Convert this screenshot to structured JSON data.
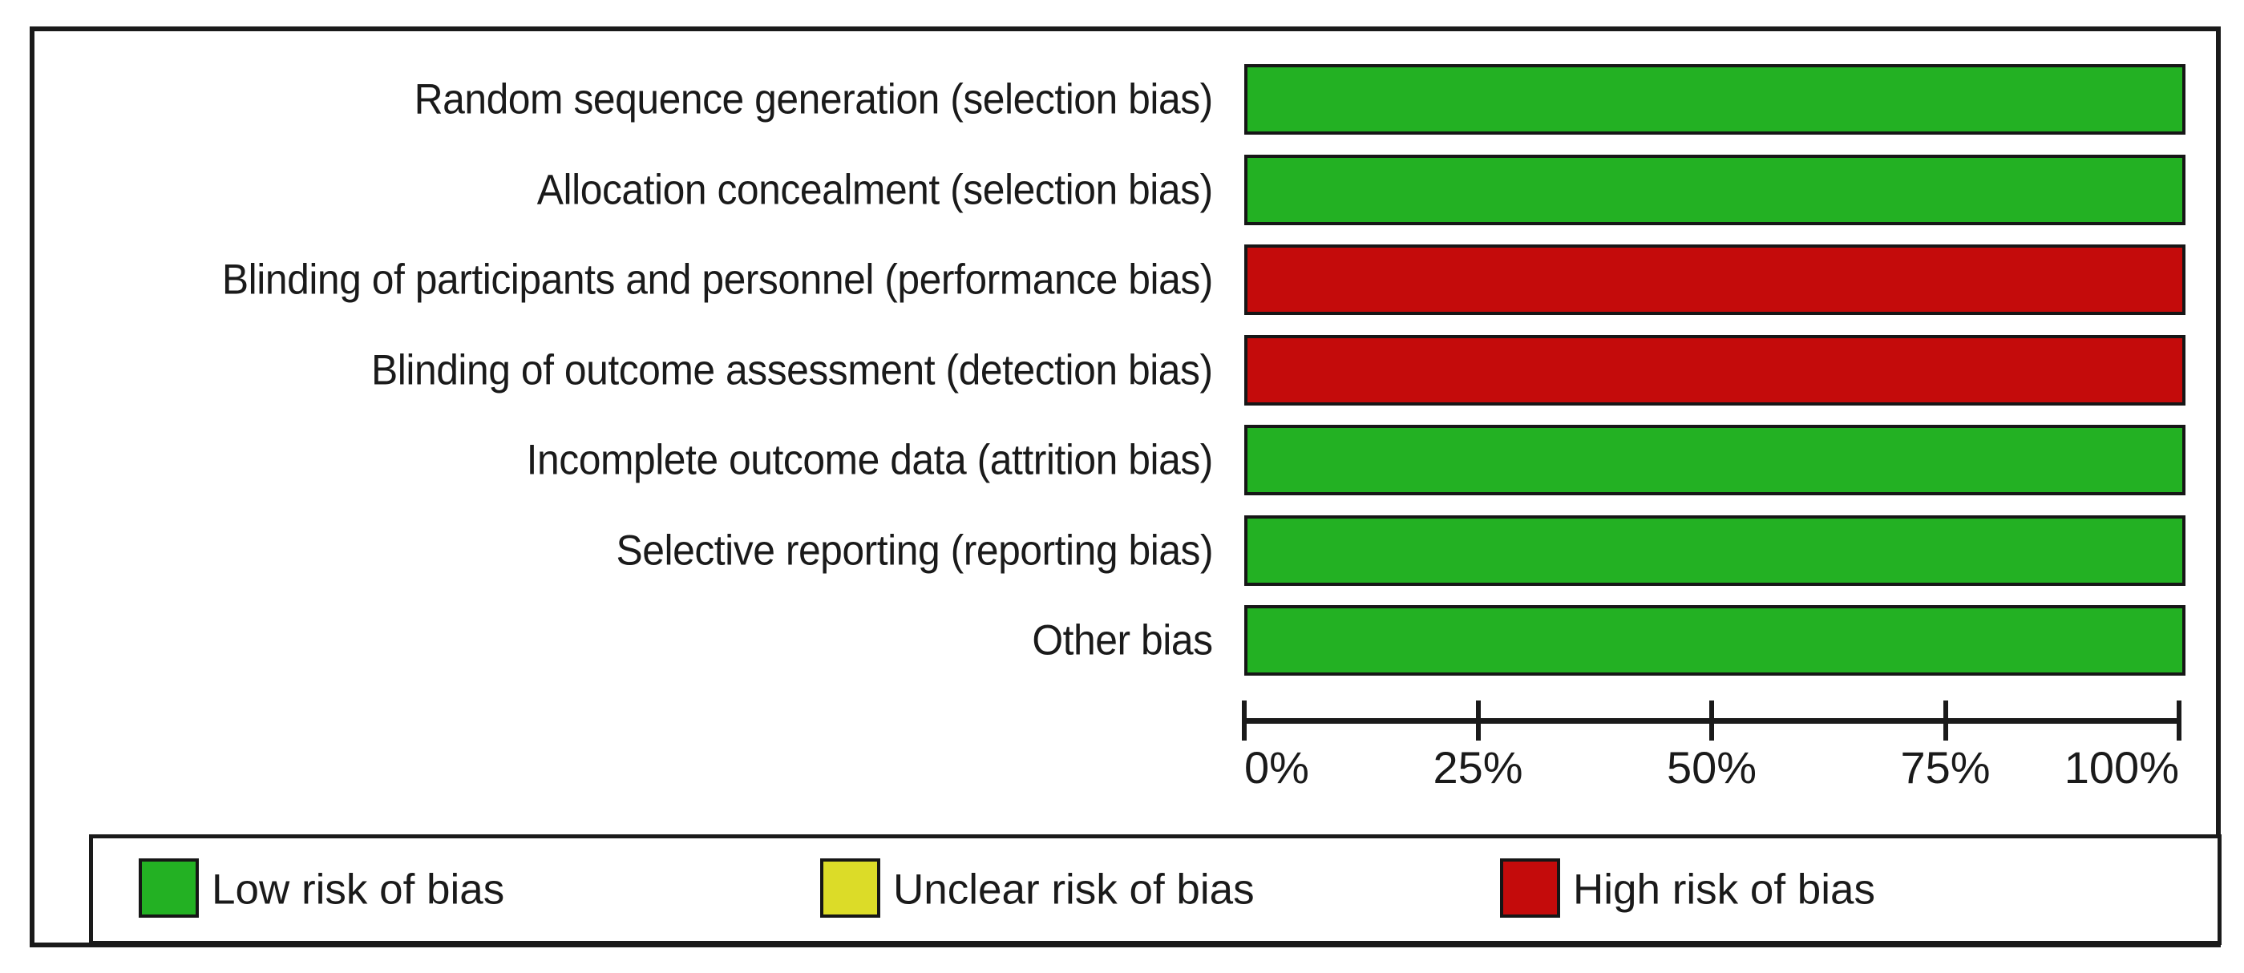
{
  "chart_data": {
    "type": "bar",
    "orientation": "horizontal",
    "categories": [
      "Random sequence generation (selection bias)",
      "Allocation concealment (selection bias)",
      "Blinding of participants and personnel (performance bias)",
      "Blinding of outcome assessment (detection bias)",
      "Incomplete outcome data (attrition bias)",
      "Selective reporting (reporting bias)",
      "Other bias"
    ],
    "rows": [
      {
        "label": "Random sequence generation (selection bias)",
        "risk": "Low risk of bias",
        "risk_key": "low",
        "value_pct": 100
      },
      {
        "label": "Allocation concealment (selection bias)",
        "risk": "Low risk of bias",
        "risk_key": "low",
        "value_pct": 100
      },
      {
        "label": "Blinding of participants and personnel (performance bias)",
        "risk": "High risk of bias",
        "risk_key": "high",
        "value_pct": 100
      },
      {
        "label": "Blinding of outcome assessment (detection bias)",
        "risk": "High risk of bias",
        "risk_key": "high",
        "value_pct": 100
      },
      {
        "label": "Incomplete outcome data (attrition bias)",
        "risk": "Low risk of bias",
        "risk_key": "low",
        "value_pct": 100
      },
      {
        "label": "Selective reporting (reporting bias)",
        "risk": "Low risk of bias",
        "risk_key": "low",
        "value_pct": 100
      },
      {
        "label": "Other bias",
        "risk": "Low risk of bias",
        "risk_key": "low",
        "value_pct": 100
      }
    ],
    "series": [
      {
        "name": "Low risk of bias",
        "values": [
          100,
          100,
          0,
          0,
          100,
          100,
          100
        ]
      },
      {
        "name": "Unclear risk of bias",
        "values": [
          0,
          0,
          0,
          0,
          0,
          0,
          0
        ]
      },
      {
        "name": "High risk of bias",
        "values": [
          0,
          0,
          100,
          100,
          0,
          0,
          0
        ]
      }
    ],
    "x_ticks": [
      "0%",
      "25%",
      "50%",
      "75%",
      "100%"
    ],
    "x_tick_values": [
      0,
      25,
      50,
      75,
      100
    ],
    "xlim": [
      0,
      100
    ],
    "grid": false,
    "legend_position": "bottom"
  },
  "legend": {
    "items": [
      {
        "label": "Low risk of bias",
        "color_key": "low",
        "color": "#23b123"
      },
      {
        "label": "Unclear risk of bias",
        "color_key": "unclear",
        "color": "#dcdc28"
      },
      {
        "label": "High risk of bias",
        "color_key": "high",
        "color": "#c40b0b"
      }
    ]
  },
  "colors": {
    "low": "#23b123",
    "unclear": "#dcdc28",
    "high": "#c40b0b",
    "axis": "#1a1a1a",
    "text": "#1a1a1a",
    "background": "#ffffff"
  }
}
